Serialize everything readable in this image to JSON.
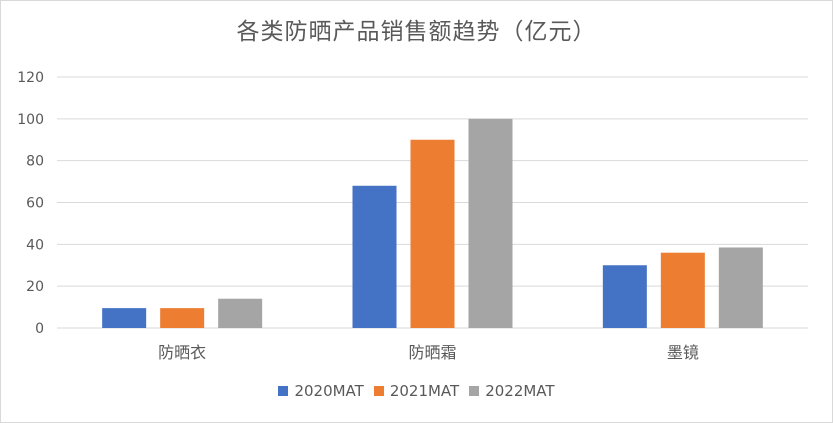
{
  "chart_data": {
    "type": "bar",
    "title": "各类防晒产品销售额趋势（亿元）",
    "categories": [
      "防晒衣",
      "防晒霜",
      "墨镜"
    ],
    "series": [
      {
        "name": "2020MAT",
        "values": [
          9.5,
          68,
          30
        ],
        "color": "#4472c4"
      },
      {
        "name": "2021MAT",
        "values": [
          9.5,
          90,
          36
        ],
        "color": "#ed7d31"
      },
      {
        "name": "2022MAT",
        "values": [
          14,
          100,
          38.5
        ],
        "color": "#a5a5a5"
      }
    ],
    "ylim": [
      0,
      120
    ],
    "yticks": [
      0,
      20,
      40,
      60,
      80,
      100,
      120
    ],
    "grid": true,
    "legend_position": "bottom"
  }
}
